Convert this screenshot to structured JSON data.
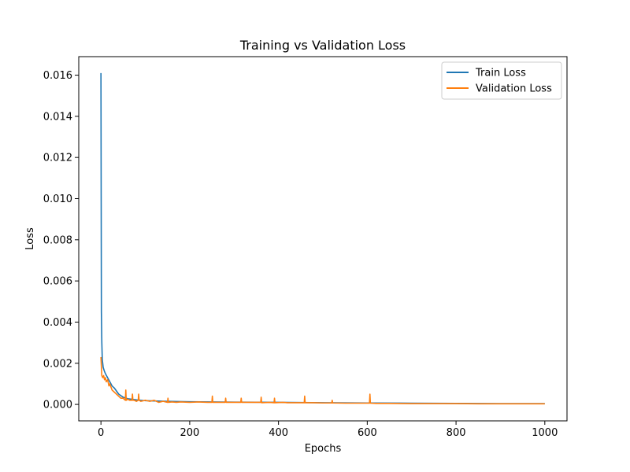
{
  "chart_data": {
    "type": "line",
    "title": "Training vs Validation Loss",
    "xlabel": "Epochs",
    "ylabel": "Loss",
    "xlim": [
      -50,
      1050
    ],
    "ylim": [
      -0.0008,
      0.0169
    ],
    "xticks": [
      0,
      200,
      400,
      600,
      800,
      1000
    ],
    "xtick_labels": [
      "0",
      "200",
      "400",
      "600",
      "800",
      "1000"
    ],
    "yticks": [
      0.0,
      0.002,
      0.004,
      0.006,
      0.008,
      0.01,
      0.012,
      0.014,
      0.016
    ],
    "ytick_labels": [
      "0.000",
      "0.002",
      "0.004",
      "0.006",
      "0.008",
      "0.010",
      "0.012",
      "0.014",
      "0.016"
    ],
    "grid": false,
    "legend_position": "top-right",
    "series": [
      {
        "name": "Train Loss",
        "color": "#1f77b4",
        "x": [
          0,
          1,
          2,
          3,
          5,
          8,
          10,
          15,
          20,
          25,
          30,
          40,
          50,
          60,
          80,
          100,
          150,
          200,
          300,
          400,
          500,
          600,
          700,
          800,
          900,
          1000
        ],
        "y": [
          0.0161,
          0.0045,
          0.003,
          0.0022,
          0.0018,
          0.0016,
          0.0015,
          0.0013,
          0.0011,
          0.0009,
          0.0008,
          0.0005,
          0.00035,
          0.00028,
          0.00022,
          0.00018,
          0.00015,
          0.00013,
          0.00011,
          0.0001,
          8e-05,
          7e-05,
          6e-05,
          5e-05,
          4e-05,
          4e-05
        ]
      },
      {
        "name": "Validation Loss",
        "color": "#ff7f0e",
        "x": [
          0,
          2,
          4,
          6,
          8,
          10,
          12,
          15,
          18,
          20,
          25,
          30,
          35,
          40,
          45,
          50,
          55,
          56,
          57,
          60,
          65,
          70,
          71,
          72,
          75,
          80,
          84,
          85,
          86,
          90,
          100,
          110,
          120,
          130,
          140,
          150,
          151,
          152,
          160,
          170,
          180,
          200,
          220,
          240,
          250,
          251,
          252,
          260,
          280,
          281,
          282,
          300,
          315,
          316,
          317,
          330,
          360,
          361,
          362,
          380,
          390,
          391,
          392,
          410,
          420,
          440,
          458,
          459,
          460,
          480,
          500,
          520,
          521,
          522,
          550,
          580,
          605,
          606,
          607,
          620,
          650,
          700,
          750,
          800,
          850,
          900,
          950,
          1000
        ],
        "y": [
          0.0023,
          0.0014,
          0.0013,
          0.0014,
          0.0012,
          0.0013,
          0.0011,
          0.0012,
          0.0009,
          0.001,
          0.0007,
          0.0006,
          0.0005,
          0.0004,
          0.0003,
          0.0003,
          0.0002,
          0.0007,
          0.0002,
          0.00025,
          0.0002,
          0.0002,
          0.0005,
          0.0002,
          0.0002,
          0.00015,
          0.0002,
          0.0005,
          0.0002,
          0.00015,
          0.0002,
          0.00015,
          0.0002,
          0.0001,
          0.00015,
          0.0001,
          0.0003,
          0.0001,
          0.00012,
          0.0001,
          0.00012,
          0.0001,
          0.00012,
          0.0001,
          0.0001,
          0.0004,
          0.0001,
          0.0001,
          0.0001,
          0.0003,
          0.0001,
          0.0001,
          0.0001,
          0.0003,
          0.0001,
          0.0001,
          0.0001,
          0.00035,
          8e-05,
          0.0001,
          8e-05,
          0.0003,
          8e-05,
          0.0001,
          8e-05,
          8e-05,
          8e-05,
          0.0004,
          8e-05,
          8e-05,
          7e-05,
          7e-05,
          0.0002,
          7e-05,
          6e-05,
          6e-05,
          6e-05,
          0.0005,
          6e-05,
          5e-05,
          5e-05,
          4e-05,
          4e-05,
          4e-05,
          3e-05,
          3e-05,
          3e-05,
          3e-05
        ]
      }
    ]
  }
}
